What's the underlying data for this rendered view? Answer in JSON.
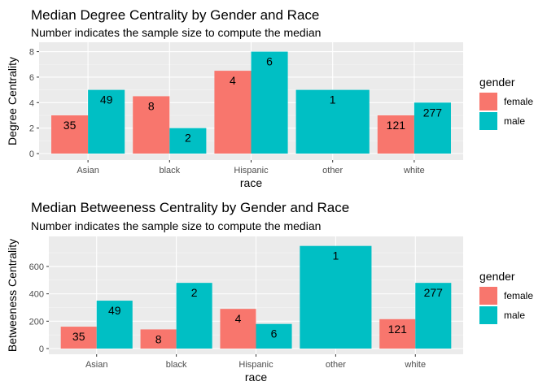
{
  "chart_data": [
    {
      "type": "bar",
      "title": "Median Degree Centrality by Gender and Race",
      "subtitle": "Number indicates the sample size to compute the median",
      "xlabel": "race",
      "ylabel": "Degree Centrality",
      "categories": [
        "Asian",
        "black",
        "Hispanic",
        "other",
        "white"
      ],
      "ylim": [
        0,
        8.1
      ],
      "yticks": [
        0,
        2,
        4,
        6,
        8
      ],
      "grid": true,
      "legend": {
        "title": "gender",
        "position": "right"
      },
      "bars": [
        {
          "category": "Asian",
          "gender": "female",
          "value": 3,
          "n": "35"
        },
        {
          "category": "Asian",
          "gender": "male",
          "value": 5,
          "n": "49"
        },
        {
          "category": "black",
          "gender": "female",
          "value": 4.5,
          "n": "8"
        },
        {
          "category": "black",
          "gender": "male",
          "value": 2,
          "n": "2"
        },
        {
          "category": "Hispanic",
          "gender": "female",
          "value": 6.5,
          "n": "4"
        },
        {
          "category": "Hispanic",
          "gender": "male",
          "value": 8,
          "n": "6"
        },
        {
          "category": "other",
          "gender": "male",
          "value": 5,
          "n": "1"
        },
        {
          "category": "white",
          "gender": "female",
          "value": 3,
          "n": "121"
        },
        {
          "category": "white",
          "gender": "male",
          "value": 4,
          "n": "277"
        }
      ]
    },
    {
      "type": "bar",
      "title": "Median Betweeness Centrality by Gender and Race",
      "subtitle": "Number indicates the sample size to compute the median",
      "xlabel": "race",
      "ylabel": "Betweeness Centrality",
      "categories": [
        "Asian",
        "black",
        "Hispanic",
        "other",
        "white"
      ],
      "ylim": [
        0,
        760
      ],
      "yticks": [
        0,
        200,
        400,
        600
      ],
      "grid": true,
      "legend": {
        "title": "gender",
        "position": "right"
      },
      "bars": [
        {
          "category": "Asian",
          "gender": "female",
          "value": 160,
          "n": "35"
        },
        {
          "category": "Asian",
          "gender": "male",
          "value": 350,
          "n": "49"
        },
        {
          "category": "black",
          "gender": "female",
          "value": 140,
          "n": "8"
        },
        {
          "category": "black",
          "gender": "male",
          "value": 480,
          "n": "2"
        },
        {
          "category": "Hispanic",
          "gender": "female",
          "value": 290,
          "n": "4"
        },
        {
          "category": "Hispanic",
          "gender": "male",
          "value": 180,
          "n": "6"
        },
        {
          "category": "other",
          "gender": "male",
          "value": 750,
          "n": "1"
        },
        {
          "category": "white",
          "gender": "female",
          "value": 215,
          "n": "121"
        },
        {
          "category": "white",
          "gender": "male",
          "value": 480,
          "n": "277"
        }
      ]
    }
  ],
  "colors": {
    "female": "#F8766D",
    "male": "#00BFC4",
    "panel": "#EBEBEB",
    "grid_major": "#FFFFFF",
    "grid_minor": "#F5F5F5"
  },
  "legend_items": [
    "female",
    "male"
  ]
}
